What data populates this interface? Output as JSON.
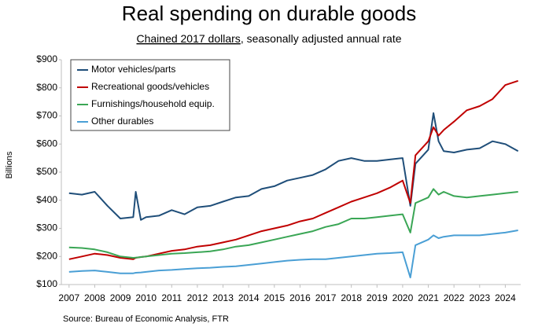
{
  "chart_data": {
    "type": "line",
    "title": "Real spending on durable goods",
    "subtitle": [
      "Chained 2017 dollars",
      ", seasonally adjusted annual rate"
    ],
    "y_label": "Billions",
    "source": "Source: Bureau of Economic Analysis, FTR",
    "x": [
      2007,
      2007.5,
      2008,
      2008.5,
      2009,
      2009.5,
      2009.6,
      2009.8,
      2010,
      2010.5,
      2011,
      2011.5,
      2012,
      2012.5,
      2013,
      2013.5,
      2014,
      2014.5,
      2015,
      2015.5,
      2016,
      2016.5,
      2017,
      2017.5,
      2018,
      2018.5,
      2019,
      2019.5,
      2020,
      2020.3,
      2020.5,
      2021,
      2021.2,
      2021.4,
      2021.6,
      2022,
      2022.5,
      2023,
      2023.5,
      2024,
      2024.5
    ],
    "series": [
      {
        "name": "Motor vehicles/parts",
        "color": "#1f4e79",
        "values": [
          425,
          420,
          430,
          380,
          335,
          340,
          430,
          330,
          340,
          345,
          365,
          350,
          375,
          380,
          395,
          410,
          415,
          440,
          450,
          470,
          480,
          490,
          510,
          540,
          550,
          540,
          540,
          545,
          550,
          380,
          530,
          580,
          710,
          610,
          575,
          570,
          580,
          585,
          610,
          600,
          575
        ]
      },
      {
        "name": "Recreational goods/vehicles",
        "color": "#c00000",
        "values": [
          190,
          200,
          210,
          205,
          195,
          190,
          195,
          198,
          200,
          210,
          220,
          225,
          235,
          240,
          250,
          260,
          275,
          290,
          300,
          310,
          325,
          335,
          355,
          375,
          395,
          410,
          425,
          445,
          470,
          390,
          560,
          610,
          660,
          630,
          650,
          680,
          720,
          735,
          760,
          810,
          825
        ]
      },
      {
        "name": "Furnishings/household equip.",
        "color": "#3aa655",
        "values": [
          232,
          230,
          225,
          215,
          200,
          195,
          196,
          198,
          200,
          205,
          210,
          212,
          215,
          218,
          225,
          235,
          240,
          250,
          260,
          270,
          280,
          290,
          305,
          315,
          335,
          335,
          340,
          345,
          350,
          285,
          390,
          410,
          440,
          420,
          430,
          415,
          410,
          415,
          420,
          425,
          430
        ]
      },
      {
        "name": "Other durables",
        "color": "#4a9fd5",
        "values": [
          145,
          148,
          150,
          145,
          140,
          140,
          142,
          143,
          145,
          150,
          152,
          155,
          158,
          160,
          163,
          165,
          170,
          175,
          180,
          185,
          188,
          190,
          190,
          195,
          200,
          205,
          210,
          212,
          215,
          125,
          240,
          260,
          275,
          265,
          270,
          275,
          275,
          275,
          280,
          285,
          293
        ]
      }
    ],
    "xlim": [
      2006.7,
      2024.6
    ],
    "xticks": [
      2007,
      2008,
      2009,
      2010,
      2011,
      2012,
      2013,
      2014,
      2015,
      2016,
      2017,
      2018,
      2019,
      2020,
      2021,
      2022,
      2023,
      2024
    ],
    "ylim": [
      100,
      900
    ],
    "yticks": [
      {
        "value": 100,
        "label": "$100"
      },
      {
        "value": 200,
        "label": "$200"
      },
      {
        "value": 300,
        "label": "$300"
      },
      {
        "value": 400,
        "label": "$400"
      },
      {
        "value": 500,
        "label": "$500"
      },
      {
        "value": 600,
        "label": "$600"
      },
      {
        "value": 700,
        "label": "$700"
      },
      {
        "value": 800,
        "label": "$800"
      },
      {
        "value": 900,
        "label": "$900"
      }
    ],
    "grid": false,
    "legend": "top-left"
  }
}
